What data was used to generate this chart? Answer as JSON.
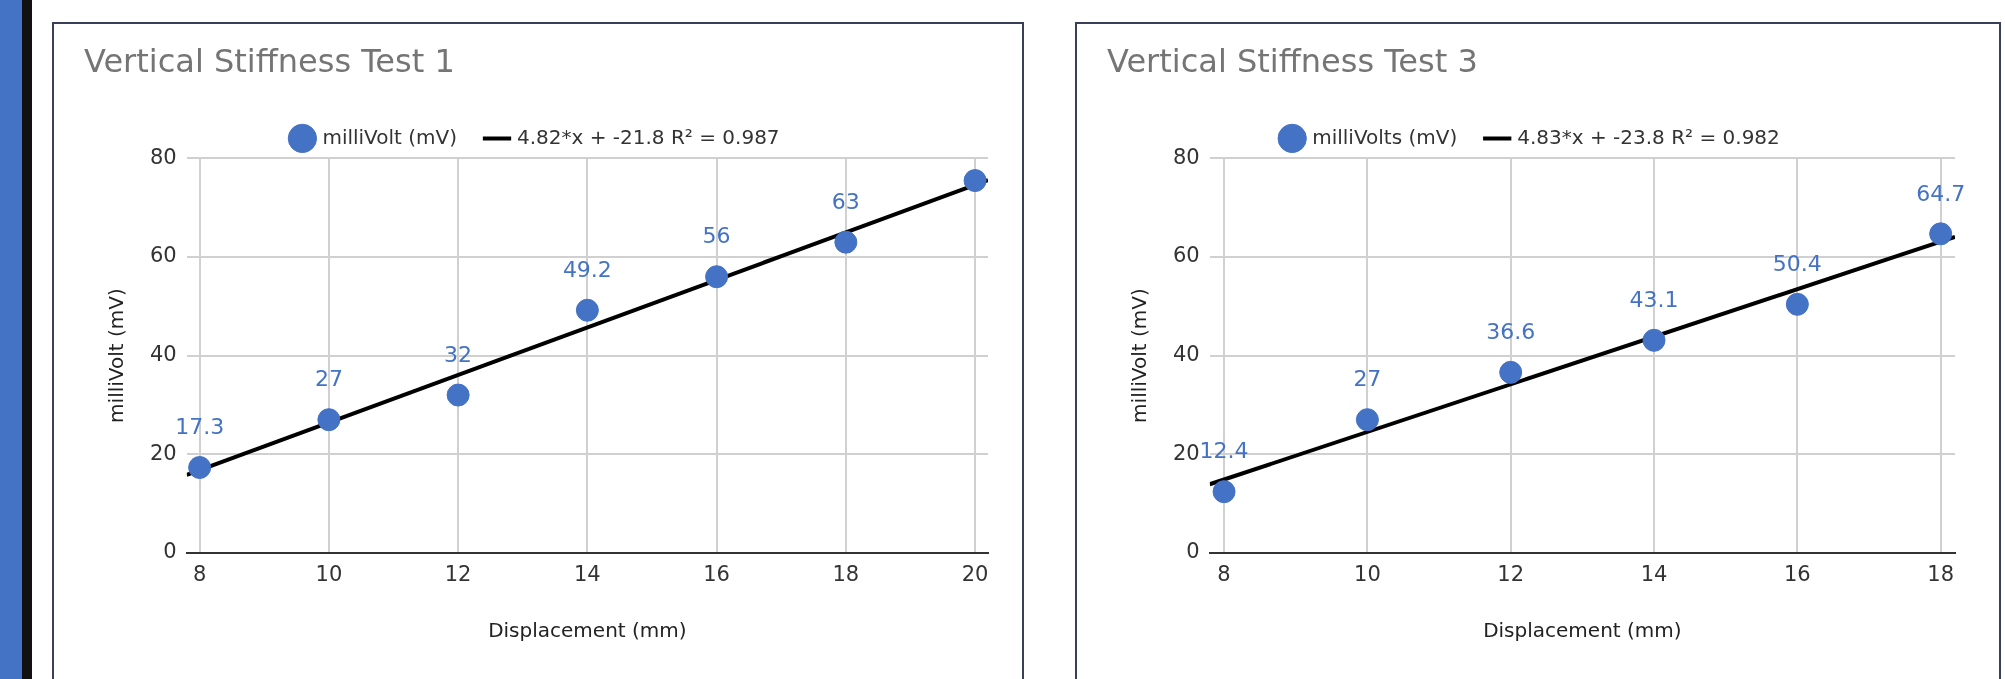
{
  "chart_data": [
    {
      "type": "scatter",
      "title": "Vertical Stiffness Test 1",
      "xlabel": "Displacement (mm)",
      "ylabel": "milliVolt (mV)",
      "x": [
        8,
        10,
        12,
        14,
        16,
        18,
        20
      ],
      "series": [
        {
          "name": "milliVolt (mV)",
          "color": "#4472c4",
          "marker": "circle",
          "values": [
            17.3,
            27,
            32,
            49.2,
            56,
            63,
            75.5
          ],
          "value_labels": [
            "17.3",
            "27",
            "32",
            "49.2",
            "56",
            "63",
            null
          ]
        },
        {
          "name": "4.82*x + -21.8 R² = 0.987",
          "type": "line",
          "color": "#000000",
          "marker": "none",
          "line_style": "solid",
          "x": [
            7.8,
            20.2
          ],
          "values": [
            15.8,
            75.6
          ]
        }
      ],
      "xlim": [
        7.8,
        20.2
      ],
      "xticks": [
        8,
        10,
        12,
        14,
        16,
        18,
        20
      ],
      "ylim": [
        0,
        80
      ],
      "yticks": [
        0,
        20,
        40,
        60,
        80
      ],
      "grid": true,
      "legend": "top"
    },
    {
      "type": "scatter",
      "title": "Vertical Stiffness Test 3",
      "xlabel": "Displacement (mm)",
      "ylabel": "milliVolt (mV)",
      "x": [
        8,
        10,
        12,
        14,
        16,
        18
      ],
      "series": [
        {
          "name": "milliVolts (mV)",
          "color": "#4472c4",
          "marker": "circle",
          "values": [
            12.4,
            27,
            36.6,
            43.1,
            50.4,
            64.7
          ],
          "value_labels": [
            "12.4",
            "27",
            "36.6",
            "43.1",
            "50.4",
            "64.7"
          ]
        },
        {
          "name": "4.83*x + -23.8 R² = 0.982",
          "type": "line",
          "color": "#000000",
          "marker": "none",
          "line_style": "solid",
          "x": [
            7.8,
            18.2
          ],
          "values": [
            13.9,
            64.1
          ]
        }
      ],
      "xlim": [
        7.8,
        18.2
      ],
      "xticks": [
        8,
        10,
        12,
        14,
        16,
        18
      ],
      "ylim": [
        0,
        80
      ],
      "yticks": [
        0,
        20,
        40,
        60,
        80
      ],
      "grid": true,
      "legend": "top"
    }
  ]
}
